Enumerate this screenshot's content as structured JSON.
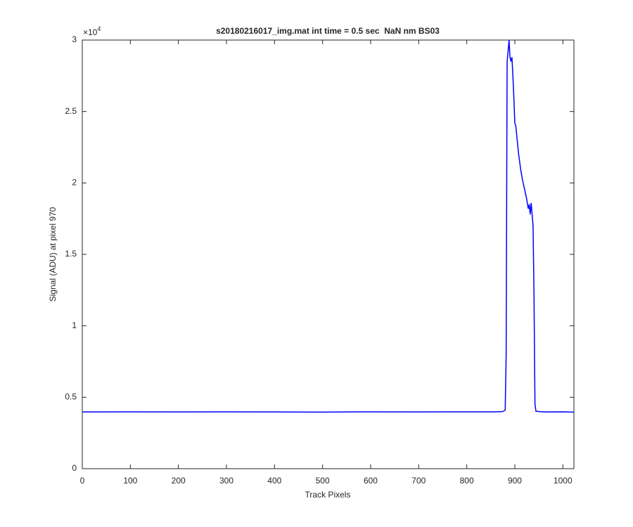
{
  "chart_data": {
    "type": "line",
    "title": "s20180216017_img.mat int time = 0.5 sec  NaN nm BS03",
    "x_label": "Track Pixels",
    "y_label": "Signal (ADU) at pixel 970",
    "y_multiplier_base": "×10",
    "y_multiplier_power": "4",
    "xlim": [
      0,
      1023
    ],
    "xticks": [
      0,
      100,
      200,
      300,
      400,
      500,
      600,
      700,
      800,
      900,
      1000
    ],
    "ylim": [
      0,
      3
    ],
    "yticks": [
      0,
      0.5,
      1,
      1.5,
      2,
      2.5,
      3
    ],
    "series": [
      {
        "color": "#0000ff",
        "x": [
          0,
          100,
          200,
          300,
          400,
          500,
          600,
          700,
          800,
          860,
          875,
          880,
          882,
          884,
          886,
          888,
          890,
          892,
          894,
          896,
          898,
          900,
          902,
          905,
          908,
          912,
          916,
          920,
          924,
          928,
          930,
          932,
          934,
          936,
          938,
          940,
          941,
          942,
          944,
          960,
          1000,
          1023
        ],
        "values": [
          0.397,
          0.398,
          0.397,
          0.398,
          0.397,
          0.396,
          0.398,
          0.397,
          0.398,
          0.398,
          0.4,
          0.41,
          0.8,
          2.85,
          2.92,
          3.0,
          2.88,
          2.85,
          2.88,
          2.75,
          2.6,
          2.42,
          2.4,
          2.3,
          2.2,
          2.1,
          2.02,
          1.96,
          1.9,
          1.82,
          1.85,
          1.78,
          1.86,
          1.78,
          1.7,
          1.2,
          0.8,
          0.45,
          0.402,
          0.397,
          0.398,
          0.396
        ]
      }
    ]
  }
}
